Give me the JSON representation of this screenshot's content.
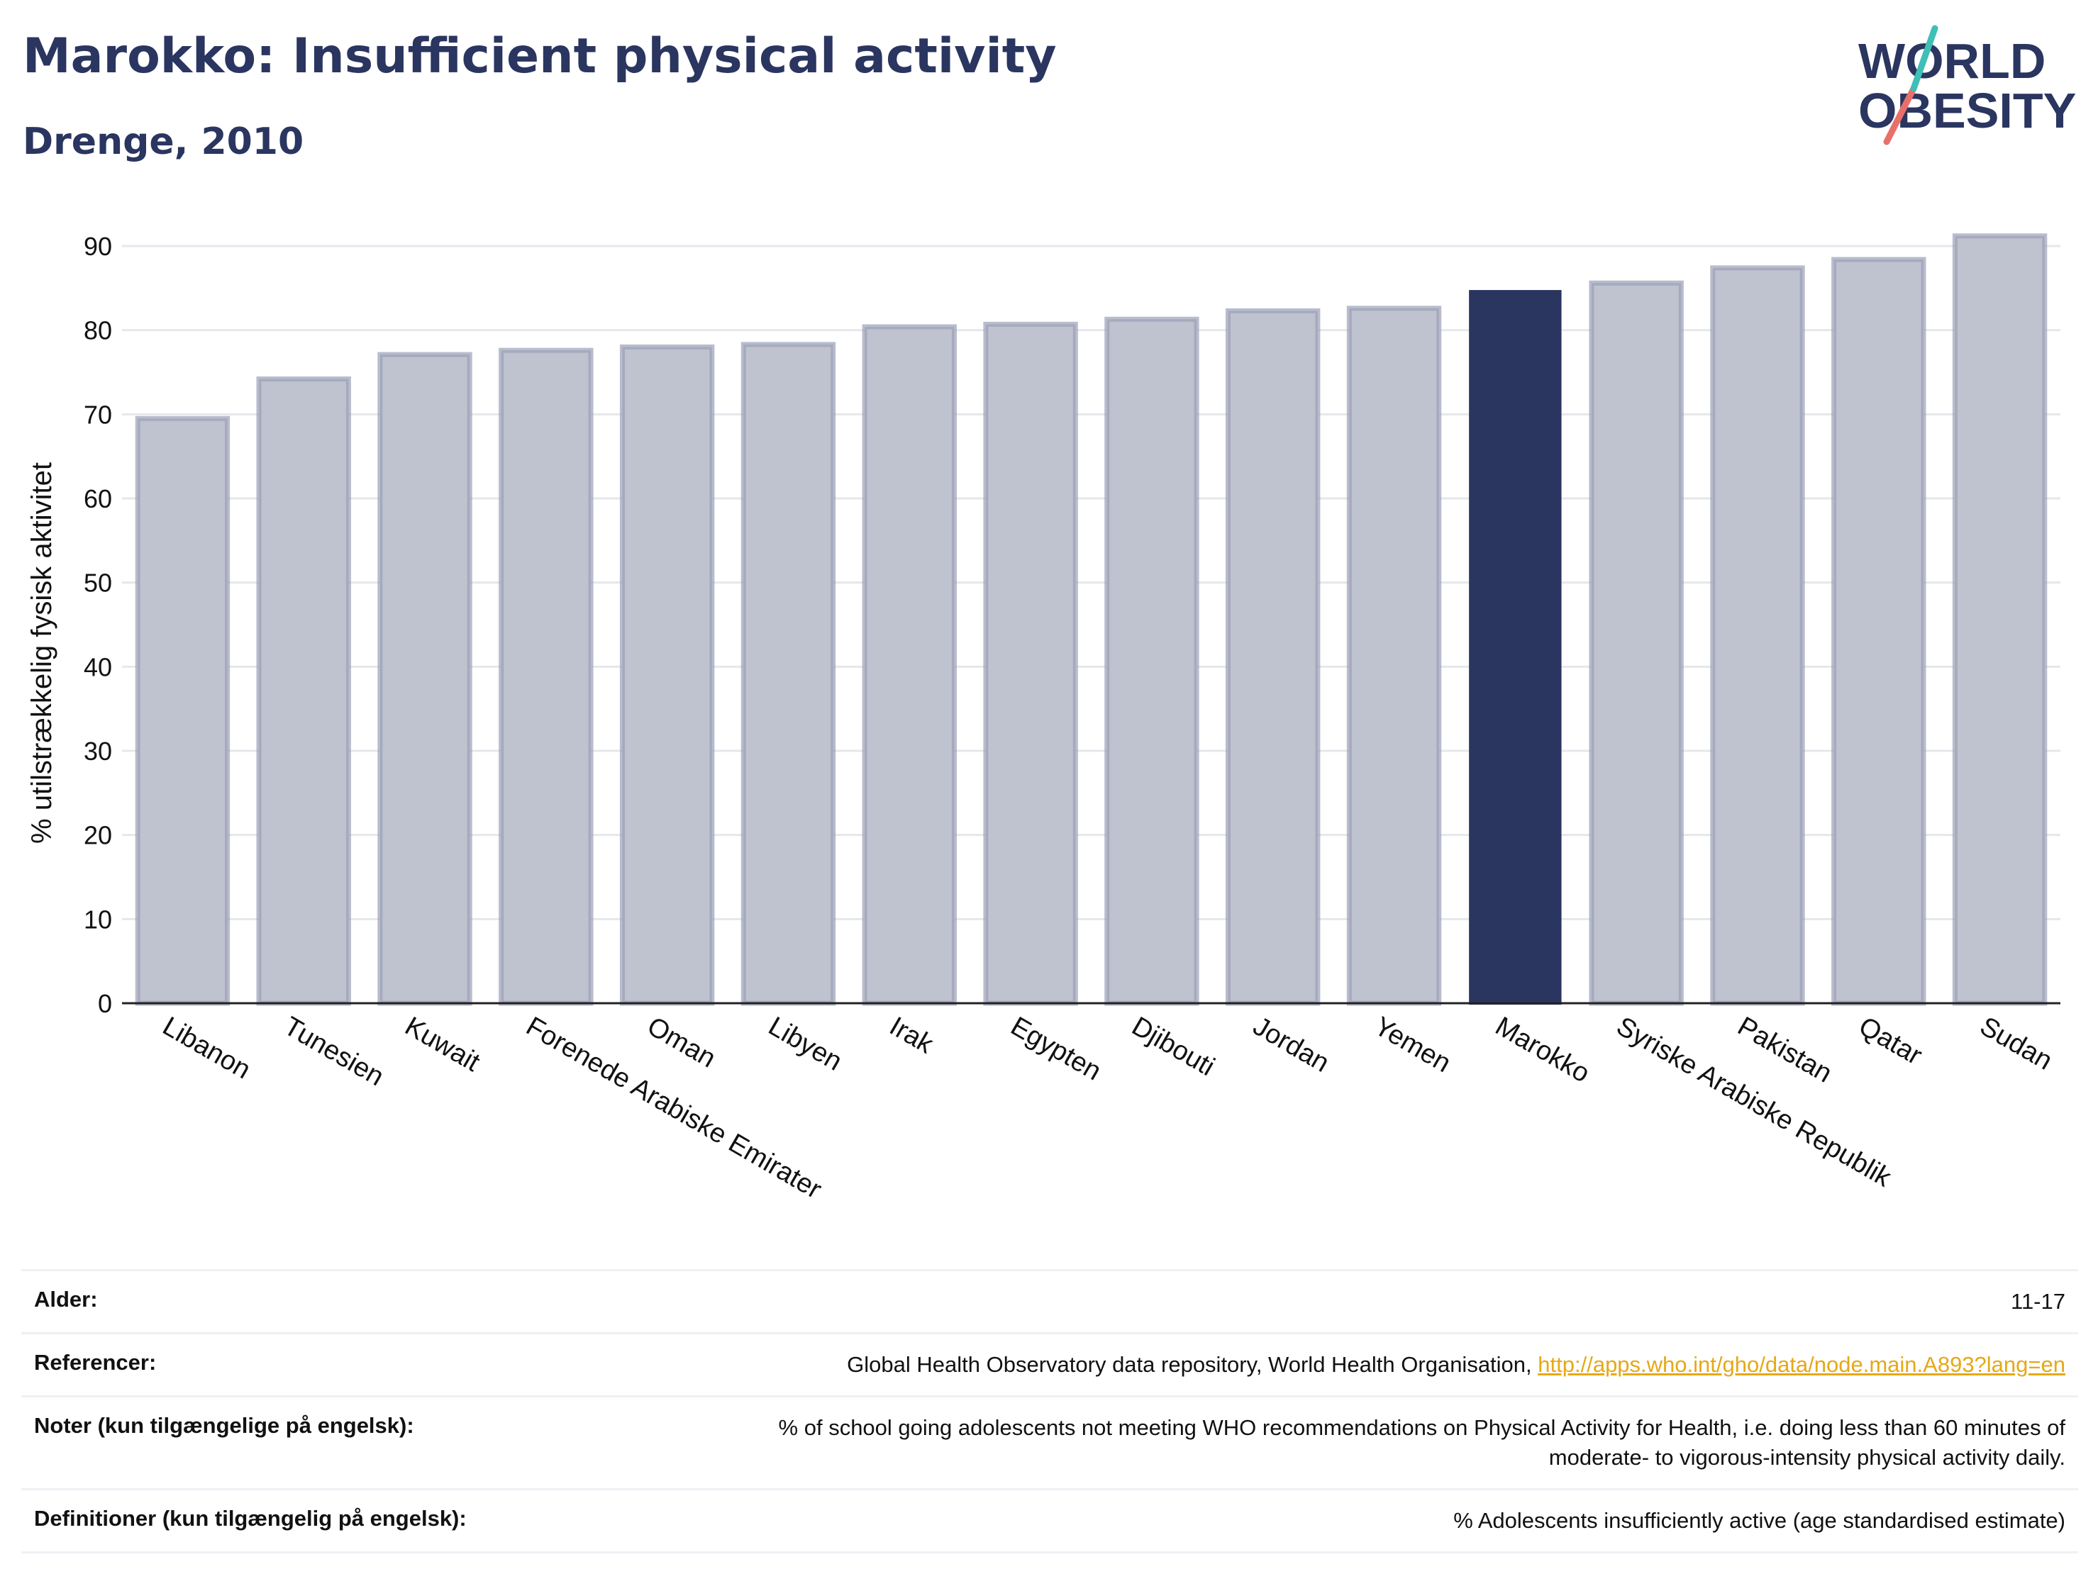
{
  "header": {
    "title": "Marokko: Insufficient physical activity",
    "subtitle": "Drenge, 2010"
  },
  "logo": {
    "line1": "WORLD",
    "line2": "OBESITY"
  },
  "colors": {
    "highlight": "#2a3560",
    "bar_fill": "#bfc2cf",
    "bar_stroke": "#9aa0b7",
    "axis_text": "#111111",
    "grid": "#e6e7ec",
    "link": "#e6a817"
  },
  "chart_data": {
    "type": "bar",
    "title": "Marokko: Insufficient physical activity",
    "subtitle": "Drenge, 2010",
    "ylabel": "% utilstrækkelig fysisk aktivitet",
    "xlabel": "",
    "ylim": [
      0,
      90
    ],
    "yticks": [
      0,
      10,
      20,
      30,
      40,
      50,
      60,
      70,
      80,
      90
    ],
    "grid": true,
    "highlight": "Marokko",
    "categories": [
      "Libanon",
      "Tunesien",
      "Kuwait",
      "Forenede Arabiske Emirater",
      "Oman",
      "Libyen",
      "Irak",
      "Egypten",
      "Djibouti",
      "Jordan",
      "Yemen",
      "Marokko",
      "Syriske Arabiske Republik",
      "Pakistan",
      "Qatar",
      "Sudan"
    ],
    "values": [
      69.5,
      74.2,
      77.1,
      77.6,
      78.0,
      78.3,
      80.4,
      80.7,
      81.3,
      82.3,
      82.6,
      84.6,
      85.6,
      87.4,
      88.4,
      91.2
    ]
  },
  "meta": {
    "age_label": "Alder:",
    "age_value": "11-17",
    "ref_label": "Referencer:",
    "ref_text": "Global Health Observatory data repository, World Health Organisation,",
    "ref_link": "http://apps.who.int/gho/data/node.main.A893?lang=en",
    "notes_label": "Noter (kun tilgængelige på engelsk):",
    "notes_line1": "% of school going adolescents not meeting WHO recommendations on Physical Activity for Health, i.e. doing less than 60 minutes of",
    "notes_line2": "moderate- to vigorous-intensity physical activity daily.",
    "def_label": "Definitioner (kun tilgængelig på engelsk):",
    "def_value": "% Adolescents insufficiently active (age standardised estimate)"
  }
}
